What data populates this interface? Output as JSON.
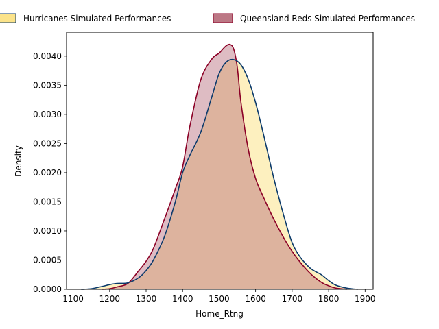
{
  "chart_data": {
    "type": "area",
    "xlabel": "Home_Rtng",
    "ylabel": "Density",
    "xlim": [
      1082,
      1922
    ],
    "ylim": [
      0,
      0.00441
    ],
    "x_ticks": [
      1100,
      1200,
      1300,
      1400,
      1500,
      1600,
      1700,
      1800,
      1900
    ],
    "x_tick_labels": [
      "1100",
      "1200",
      "1300",
      "1400",
      "1500",
      "1600",
      "1700",
      "1800",
      "1900"
    ],
    "y_ticks": [
      0,
      0.0005,
      0.001,
      0.0015,
      0.002,
      0.0025,
      0.003,
      0.0035,
      0.004
    ],
    "y_tick_labels": [
      "0.0000",
      "0.0005",
      "0.0010",
      "0.0015",
      "0.0020",
      "0.0025",
      "0.0030",
      "0.0035",
      "0.0040"
    ],
    "legend_position": "top-center, outside plot",
    "grid": false,
    "series": [
      {
        "name": "Hurricanes Simulated Performances",
        "fill_color": "#fbe38a",
        "line_color": "#0b3a6b",
        "x": [
          1122,
          1150,
          1180,
          1200,
          1220,
          1250,
          1280,
          1300,
          1320,
          1350,
          1380,
          1400,
          1420,
          1450,
          1480,
          1500,
          1520,
          1540,
          1560,
          1580,
          1600,
          1620,
          1650,
          1680,
          1700,
          1720,
          1750,
          1780,
          1800,
          1820,
          1850,
          1880
        ],
        "y": [
          0,
          1e-05,
          5e-05,
          8e-05,
          0.0001,
          0.00011,
          0.0002,
          0.00032,
          0.0005,
          0.0009,
          0.0015,
          0.002,
          0.0023,
          0.0027,
          0.0033,
          0.0037,
          0.0039,
          0.00394,
          0.00385,
          0.0036,
          0.0032,
          0.0027,
          0.0019,
          0.0012,
          0.0008,
          0.00057,
          0.00036,
          0.00025,
          0.00015,
          7e-05,
          2e-05,
          0
        ]
      },
      {
        "name": "Queensland Reds Simulated Performances",
        "fill_color": "#b06070",
        "line_color": "#8b0026",
        "x": [
          1180,
          1200,
          1220,
          1250,
          1280,
          1300,
          1320,
          1350,
          1380,
          1400,
          1420,
          1450,
          1480,
          1500,
          1510,
          1520,
          1530,
          1540,
          1550,
          1560,
          1580,
          1600,
          1620,
          1650,
          1680,
          1700,
          1720,
          1750,
          1780,
          1800,
          1820,
          1850
        ],
        "y": [
          0,
          1e-05,
          4e-05,
          0.0001,
          0.00032,
          0.00048,
          0.0007,
          0.0012,
          0.00172,
          0.0021,
          0.0028,
          0.0036,
          0.00395,
          0.00405,
          0.00412,
          0.00418,
          0.0042,
          0.00412,
          0.0038,
          0.0032,
          0.0024,
          0.0019,
          0.0016,
          0.0012,
          0.00085,
          0.00065,
          0.00048,
          0.00027,
          0.00012,
          6e-05,
          2e-05,
          0
        ]
      }
    ]
  }
}
